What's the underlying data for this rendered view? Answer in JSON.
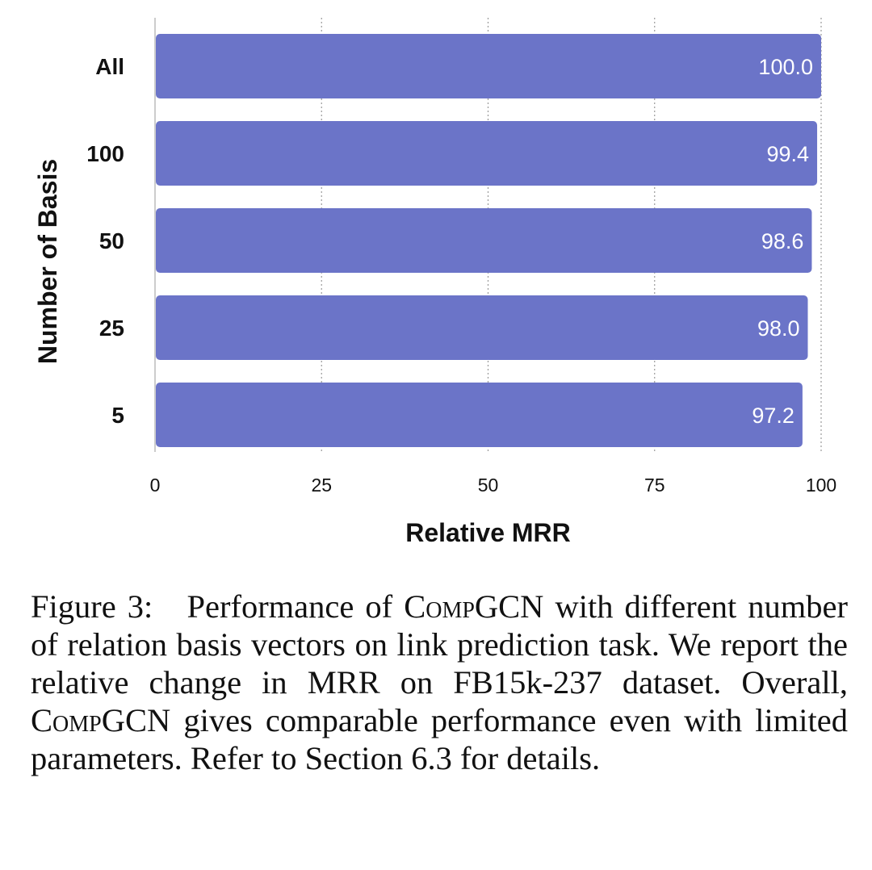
{
  "chart_data": {
    "type": "bar",
    "orientation": "horizontal",
    "categories": [
      "All",
      "100",
      "50",
      "25",
      "5"
    ],
    "values": [
      100.0,
      99.4,
      98.6,
      98.0,
      97.2
    ],
    "value_labels": [
      "100.0",
      "99.4",
      "98.6",
      "98.0",
      "97.2"
    ],
    "xlabel": "Relative MRR",
    "ylabel": "Number of Basis",
    "xlim": [
      0,
      100
    ],
    "xticks": [
      0,
      25,
      50,
      75,
      100
    ],
    "grid": "vertical dotted",
    "bar_color": "#6b74c8",
    "label_color": "#ffffff"
  },
  "caption": {
    "label": "Figure 3:",
    "parts": [
      {
        "text": "Performance of ",
        "style": "normal"
      },
      {
        "text": "CompGCN",
        "style": "smallcaps"
      },
      {
        "text": " with different number of relation basis vectors on link prediction task. We report the relative change in MRR on FB15k-237 dataset. Overall, ",
        "style": "normal"
      },
      {
        "text": "CompGCN",
        "style": "smallcaps"
      },
      {
        "text": " gives comparable performance even with limited parameters. Refer to Section 6.3 for details.",
        "style": "normal"
      }
    ]
  }
}
